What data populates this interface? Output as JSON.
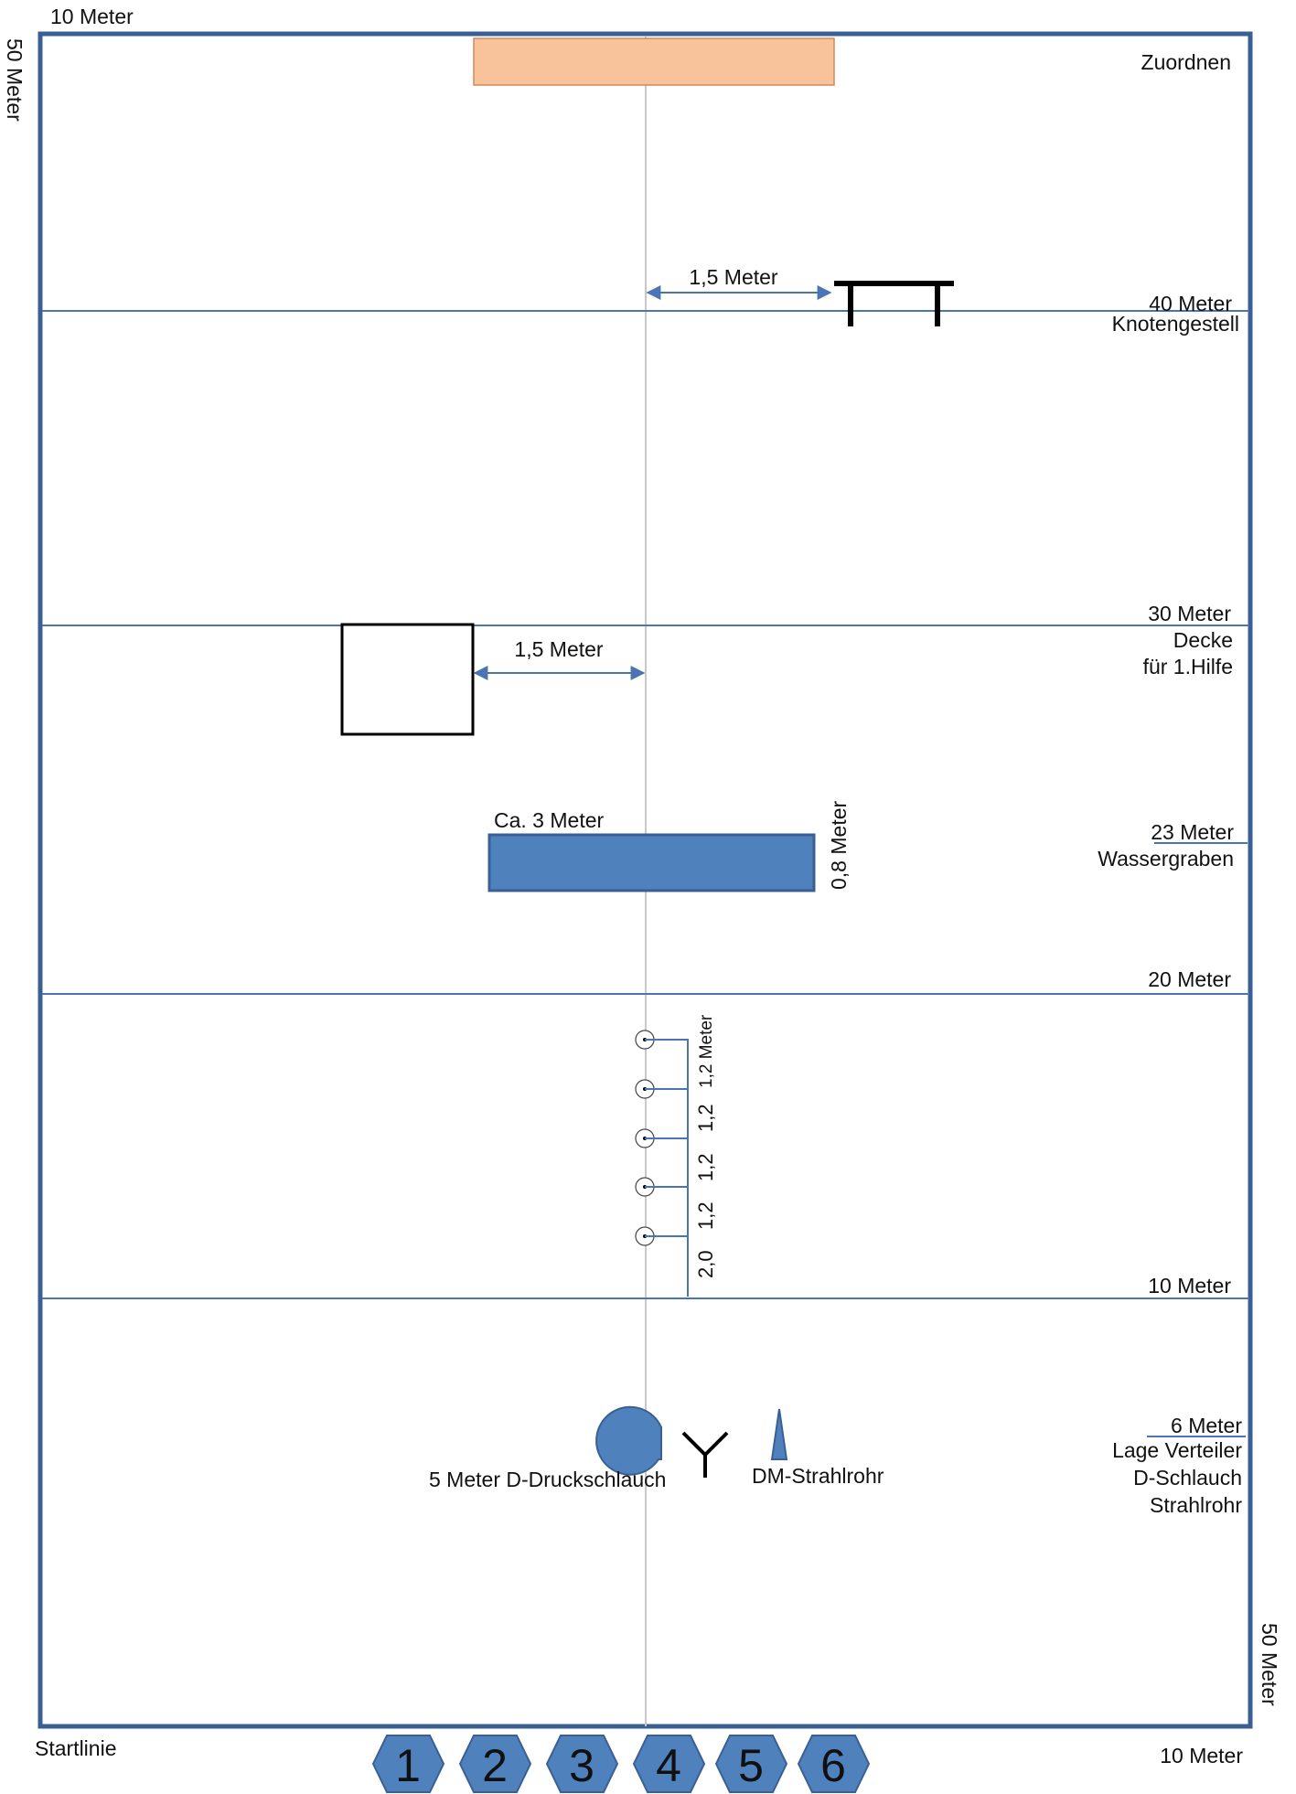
{
  "colors": {
    "border": "#3a5f95",
    "line": "#4a74b4",
    "centerline": "#c8c8c8",
    "fill_blue": "#4f81bd",
    "target_fill": "#f8c29a",
    "target_stroke": "#d08a5a",
    "black": "#000000"
  },
  "edges": {
    "top_width": "10 Meter",
    "left_length": "50 Meter",
    "right_length": "50 Meter",
    "bottom_width": "10 Meter",
    "start": "Startlinie"
  },
  "target": {
    "label": "Zuordnen"
  },
  "line_40": {
    "distance": "40 Meter",
    "station": "Knotengestell",
    "offset": "1,5 Meter"
  },
  "line_30": {
    "distance": "30 Meter",
    "station_line1": "Decke",
    "station_line2": "für 1.Hilfe",
    "offset": "1,5 Meter"
  },
  "ditch": {
    "distance": "23 Meter",
    "station": "Wassergraben",
    "length": "Ca. 3 Meter",
    "width": "0,8 Meter"
  },
  "line_20": {
    "distance": "20 Meter"
  },
  "stakes": {
    "labels": [
      "1,2 Meter",
      "1,2",
      "1,2",
      "1,2",
      "2,0"
    ]
  },
  "line_10": {
    "distance": "10 Meter"
  },
  "equipment": {
    "distance": "6 Meter",
    "station_lines": [
      "Lage Verteiler",
      "D-Schlauch",
      "Strahlrohr"
    ],
    "hose": "5 Meter D-Druckschlauch",
    "nozzle": "DM-Strahlrohr"
  },
  "positions": [
    "1",
    "2",
    "3",
    "4",
    "5",
    "6"
  ]
}
